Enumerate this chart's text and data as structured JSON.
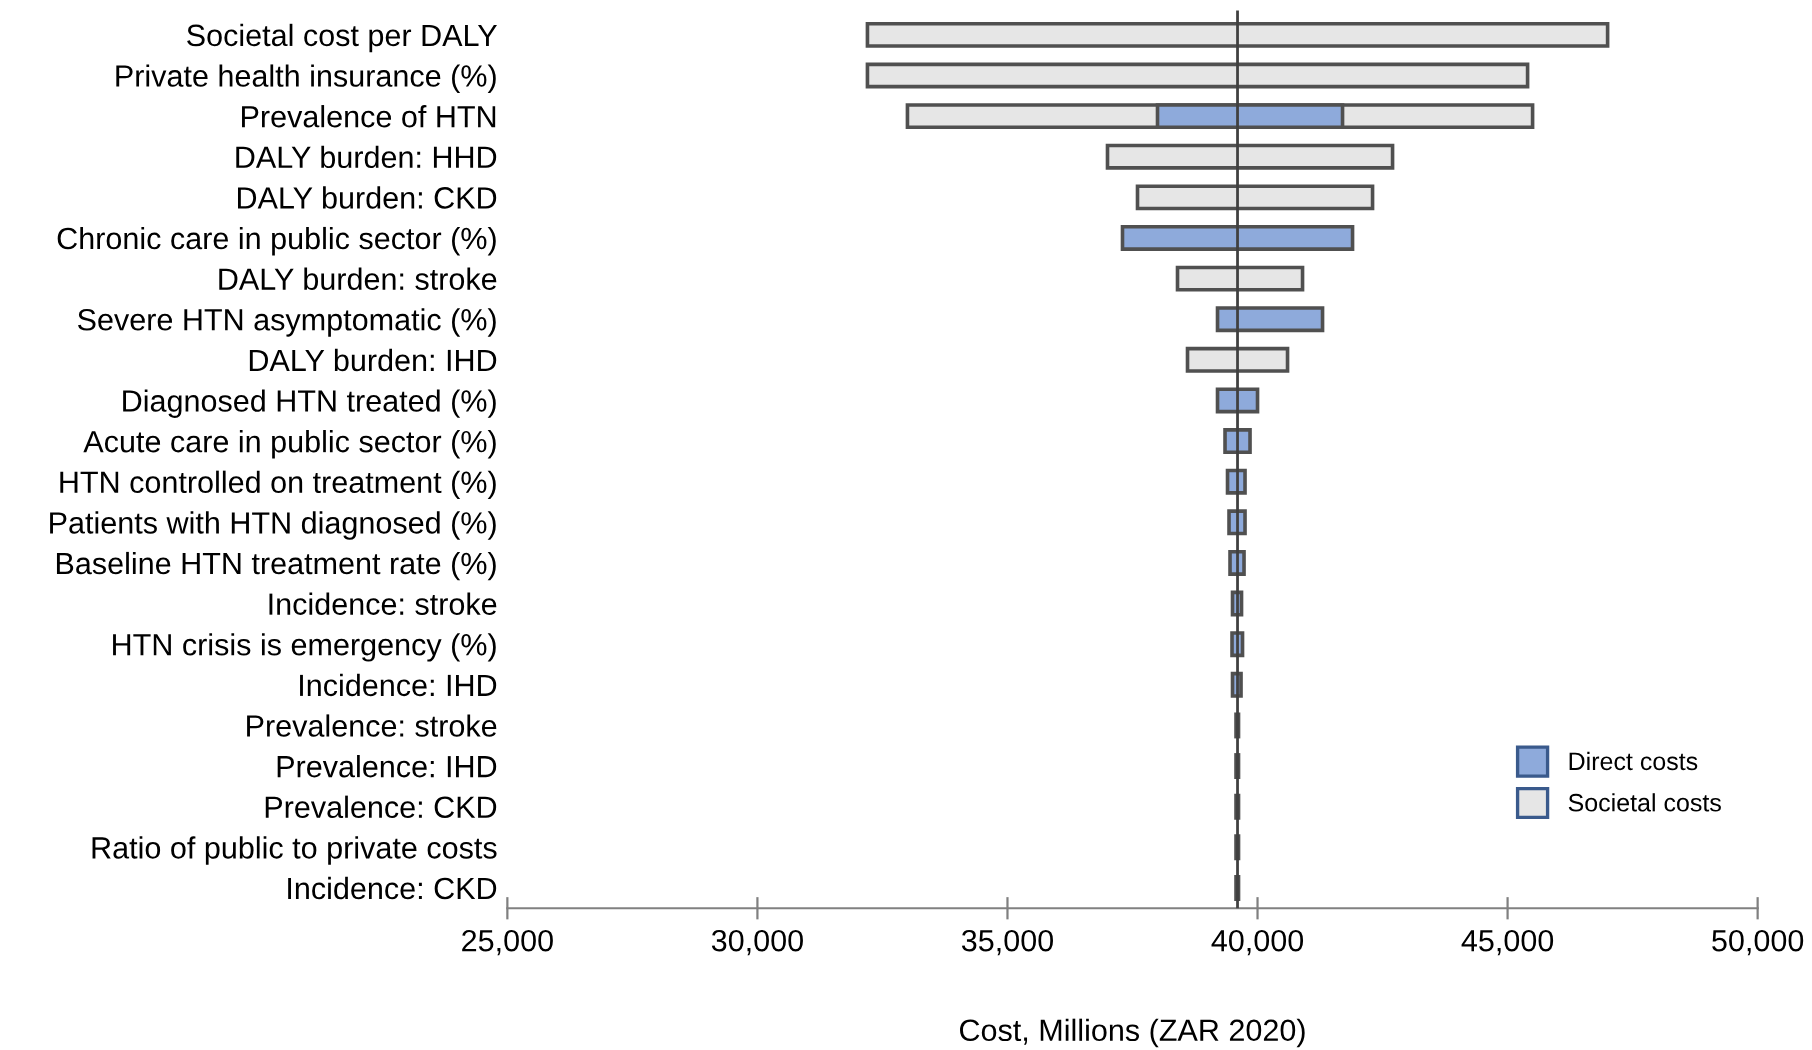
{
  "chart_data": {
    "type": "bar",
    "orientation": "horizontal",
    "xlabel": "Cost, Millions (ZAR 2020)",
    "categories": [
      "Societal cost per DALY",
      "Private health insurance (%)",
      "Prevalence of HTN",
      "DALY burden: HHD",
      "DALY burden: CKD",
      "Chronic care in public sector (%)",
      "DALY burden: stroke",
      "Severe HTN asymptomatic (%)",
      "DALY burden: IHD",
      "Diagnosed HTN treated (%)",
      "Acute care in public sector (%)",
      "HTN controlled on treatment (%)",
      "Patients with HTN diagnosed (%)",
      "Baseline HTN treatment rate (%)",
      "Incidence: stroke",
      "HTN crisis is emergency (%)",
      "Incidence: IHD",
      "Prevalence: stroke",
      "Prevalence: IHD",
      "Prevalence: CKD",
      "Ratio of public to private costs",
      "Incidence: CKD"
    ],
    "series": [
      {
        "name": "Societal costs",
        "color": "#e6e6e6",
        "base": [
          32200,
          32200,
          33000,
          37000,
          37600,
          null,
          38400,
          null,
          38600,
          null,
          null,
          null,
          null,
          null,
          null,
          null,
          null,
          null,
          null,
          null,
          null,
          null
        ],
        "values": [
          14800,
          13200,
          12500,
          5700,
          4700,
          null,
          2500,
          null,
          2000,
          null,
          null,
          null,
          null,
          null,
          null,
          null,
          null,
          null,
          null,
          null,
          null,
          null
        ]
      },
      {
        "name": "Direct costs",
        "color": "#8eaadb",
        "base": [
          null,
          null,
          38000,
          null,
          null,
          37300,
          null,
          39200,
          null,
          39200,
          39350,
          39400,
          39430,
          39450,
          39500,
          39490,
          39500,
          39570,
          39570,
          39570,
          39570,
          39570
        ],
        "values": [
          null,
          null,
          3700,
          null,
          null,
          4600,
          null,
          2100,
          null,
          800,
          500,
          350,
          320,
          280,
          180,
          210,
          170,
          50,
          50,
          50,
          50,
          50
        ]
      }
    ],
    "ref_lines": [
      {
        "axis": "x",
        "value": 39600,
        "label": null,
        "color": "#404040"
      }
    ],
    "xlim": [
      25000,
      50000
    ],
    "xticks": [
      {
        "value": 25000,
        "label": "25,000"
      },
      {
        "value": 30000,
        "label": "30,000"
      },
      {
        "value": 35000,
        "label": "35,000"
      },
      {
        "value": 40000,
        "label": "40,000"
      },
      {
        "value": 45000,
        "label": "45,000"
      },
      {
        "value": 50000,
        "label": "50,000"
      }
    ],
    "legend": "bottom right",
    "grid": false
  }
}
